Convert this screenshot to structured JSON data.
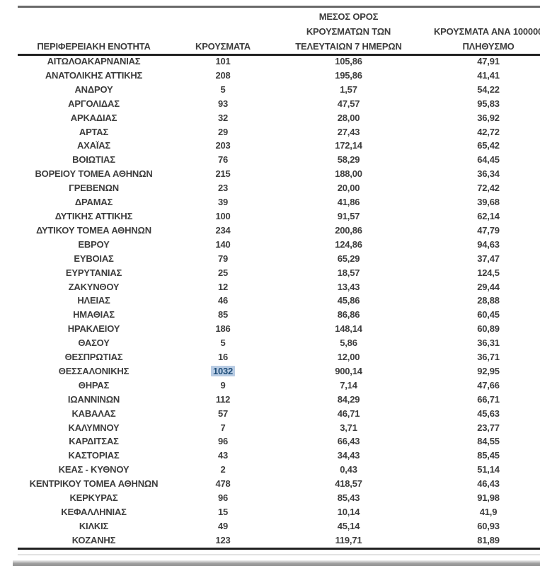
{
  "page": {
    "background": "#ffffff"
  },
  "table": {
    "headers": {
      "region": "ΠΕΡΙΦΕΡΕΙΑΚΗ ΕΝΟΤΗΤΑ",
      "cases": "ΚΡΟΥΣΜΑΤΑ",
      "avg7": "ΜΕΣΟΣ ΟΡΟΣ\nΚΡΟΥΣΜΑΤΩΝ ΤΩΝ\nΤΕΛΕΥΤΑΙΩΝ 7 ΗΜΕΡΩΝ",
      "per100k": "ΚΡΟΥΣΜΑΤΑ ΑΝΑ 100000\nΠΛΗΘΥΣΜΟ"
    },
    "rows": [
      [
        "ΑΙΤΩΛΟΑΚΑΡΝΑΝΙΑΣ",
        "101",
        "105,86",
        "47,91"
      ],
      [
        "ΑΝΑΤΟΛΙΚΗΣ ΑΤΤΙΚΗΣ",
        "208",
        "195,86",
        "41,41"
      ],
      [
        "ΑΝΔΡΟΥ",
        "5",
        "1,57",
        "54,22"
      ],
      [
        "ΑΡΓΟΛΙΔΑΣ",
        "93",
        "47,57",
        "95,83"
      ],
      [
        "ΑΡΚΑΔΙΑΣ",
        "32",
        "28,00",
        "36,92"
      ],
      [
        "ΑΡΤΑΣ",
        "29",
        "27,43",
        "42,72"
      ],
      [
        "ΑΧΑΪΑΣ",
        "203",
        "172,14",
        "65,42"
      ],
      [
        "ΒΟΙΩΤΙΑΣ",
        "76",
        "58,29",
        "64,45"
      ],
      [
        "ΒΟΡΕΙΟΥ ΤΟΜΕΑ ΑΘΗΝΩΝ",
        "215",
        "188,00",
        "36,34"
      ],
      [
        "ΓΡΕΒΕΝΩΝ",
        "23",
        "20,00",
        "72,42"
      ],
      [
        "ΔΡΑΜΑΣ",
        "39",
        "41,86",
        "39,68"
      ],
      [
        "ΔΥΤΙΚΗΣ ΑΤΤΙΚΗΣ",
        "100",
        "91,57",
        "62,14"
      ],
      [
        "ΔΥΤΙΚΟΥ ΤΟΜΕΑ ΑΘΗΝΩΝ",
        "234",
        "200,86",
        "47,79"
      ],
      [
        "ΕΒΡΟΥ",
        "140",
        "124,86",
        "94,63"
      ],
      [
        "ΕΥΒΟΙΑΣ",
        "79",
        "65,29",
        "37,47"
      ],
      [
        "ΕΥΡΥΤΑΝΙΑΣ",
        "25",
        "18,57",
        "124,5"
      ],
      [
        "ΖΑΚΥΝΘΟΥ",
        "12",
        "13,43",
        "29,44"
      ],
      [
        "ΗΛΕΙΑΣ",
        "46",
        "45,86",
        "28,88"
      ],
      [
        "ΗΜΑΘΙΑΣ",
        "85",
        "86,86",
        "60,45"
      ],
      [
        "ΗΡΑΚΛΕΙΟΥ",
        "186",
        "148,14",
        "60,89"
      ],
      [
        "ΘΑΣΟΥ",
        "5",
        "5,86",
        "36,31"
      ],
      [
        "ΘΕΣΠΡΩΤΙΑΣ",
        "16",
        "12,00",
        "36,71"
      ],
      [
        "ΘΕΣΣΑΛΟΝΙΚΗΣ",
        "1032",
        "900,14",
        "92,95"
      ],
      [
        "ΘΗΡΑΣ",
        "9",
        "7,14",
        "47,66"
      ],
      [
        "ΙΩΑΝΝΙΝΩΝ",
        "112",
        "84,29",
        "66,71"
      ],
      [
        "ΚΑΒΑΛΑΣ",
        "57",
        "46,71",
        "45,63"
      ],
      [
        "ΚΑΛΥΜΝΟΥ",
        "7",
        "3,71",
        "23,77"
      ],
      [
        "ΚΑΡΔΙΤΣΑΣ",
        "96",
        "66,43",
        "84,55"
      ],
      [
        "ΚΑΣΤΟΡΙΑΣ",
        "43",
        "34,43",
        "85,45"
      ],
      [
        "ΚΕΑΣ - ΚΥΘΝΟΥ",
        "2",
        "0,43",
        "51,14"
      ],
      [
        "ΚΕΝΤΡΙΚΟΥ ΤΟΜΕΑ ΑΘΗΝΩΝ",
        "478",
        "418,57",
        "46,43"
      ],
      [
        "ΚΕΡΚΥΡΑΣ",
        "96",
        "85,43",
        "91,98"
      ],
      [
        "ΚΕΦΑΛΛΗΝΙΑΣ",
        "15",
        "10,14",
        "41,9"
      ],
      [
        "ΚΙΛΚΙΣ",
        "49",
        "45,14",
        "60,93"
      ],
      [
        "ΚΟΖΑΝΗΣ",
        "123",
        "119,71",
        "81,89"
      ]
    ],
    "selection": {
      "row_region": "ΘΕΣΣΑΛΟΝΙΚΗΣ",
      "row_index": 22,
      "col_index": 1,
      "value": "1032",
      "highlight_bg": "#b8cce4",
      "highlight_fg": "#1f4e79"
    },
    "text_color": "#3d3d3d",
    "rule_color_dark": "#222222",
    "rule_color_gray": "#6a6a6a"
  }
}
